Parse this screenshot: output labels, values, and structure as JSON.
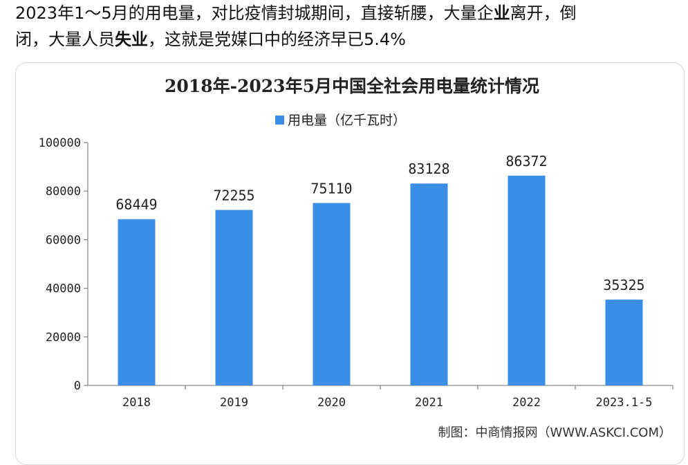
{
  "post": {
    "line1_a": "2023年1～5月的用电量，对比疫情封城期间，直接斩腰，大量企",
    "line1_b": "业",
    "line1_c": "离开，倒",
    "line2_a": "闭，大量人员",
    "line2_b": "失业",
    "line2_c": "，这就是党媒口中的经济早已5.4%"
  },
  "chart_data": {
    "type": "bar",
    "title": "2018年-2023年5月中国全社会用电量统计情况",
    "legend": "用电量（亿千瓦时）",
    "legend_position": "top-center",
    "categories": [
      "2018",
      "2019",
      "2020",
      "2021",
      "2022",
      "2023.1-5"
    ],
    "series": [
      {
        "name": "用电量（亿千瓦时）",
        "values": [
          68449,
          72255,
          75110,
          83128,
          86372,
          35325
        ]
      }
    ],
    "yticks": [
      "0",
      "20000",
      "40000",
      "60000",
      "80000",
      "100000"
    ],
    "ylim": [
      0,
      100000
    ],
    "grid": false,
    "bar_color": "#3a8ee6",
    "source": "制图：中商情报网（WWW.ASKCI.COM）"
  }
}
